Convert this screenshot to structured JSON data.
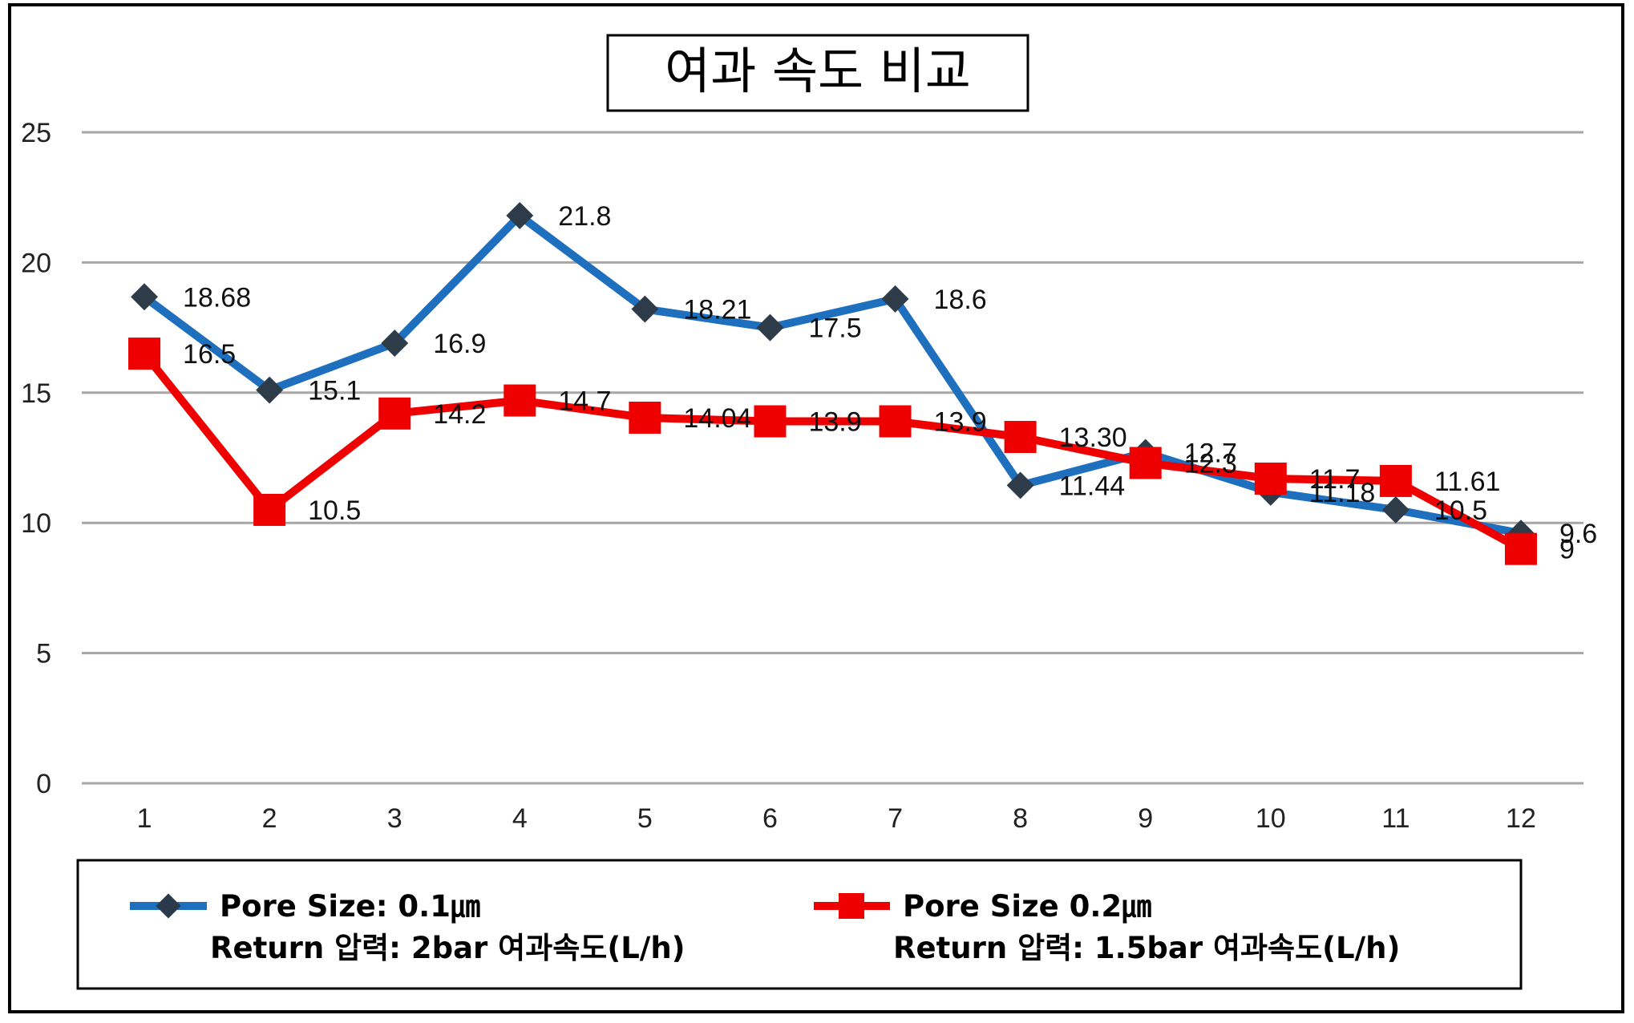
{
  "chart_data": {
    "type": "line",
    "title": "여과 속도 비교",
    "categories": [
      "1",
      "2",
      "3",
      "4",
      "5",
      "6",
      "7",
      "8",
      "9",
      "10",
      "11",
      "12"
    ],
    "ylim": [
      0,
      25
    ],
    "yticks": [
      "0",
      "5",
      "10",
      "15",
      "20",
      "25"
    ],
    "grid": true,
    "legend_position": "bottom",
    "series": [
      {
        "name_line1": "Pore Size: 0.1㎛",
        "name_line2": "Return 압력: 2bar 여과속도(L/h)",
        "color": "#1f6fbf",
        "marker": "diamond",
        "values": [
          18.68,
          15.1,
          16.9,
          21.8,
          18.21,
          17.5,
          18.6,
          11.44,
          12.7,
          11.18,
          10.5,
          9.6
        ],
        "labels": [
          "18.68",
          "15.1",
          "16.9",
          "21.8",
          "18.21",
          "17.5",
          "18.6",
          "11.44",
          "12.7",
          "11.18",
          "10.5",
          "9.6"
        ]
      },
      {
        "name_line1": "Pore Size 0.2㎛",
        "name_line2": "Return 압력: 1.5bar 여과속도(L/h)",
        "color": "#ee0000",
        "marker": "square",
        "values": [
          16.5,
          10.5,
          14.2,
          14.7,
          14.04,
          13.9,
          13.9,
          13.3,
          12.3,
          11.7,
          11.61,
          9
        ],
        "labels": [
          "16.5",
          "10.5",
          "14.2",
          "14.7",
          "14.04",
          "13.9",
          "13.9",
          "13.30",
          "12.3",
          "11.7",
          "11.61",
          "9"
        ]
      }
    ]
  }
}
